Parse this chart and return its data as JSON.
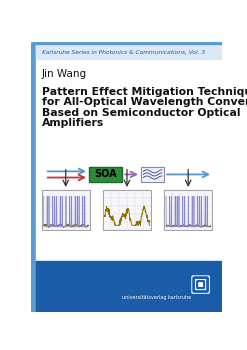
{
  "series_title": "Karlsruhe Series in Photonics & Communications, Vol. 3",
  "author": "Jin Wang",
  "title_line1": "Pattern Effect Mitigation Techniques",
  "title_line2": "for All-Optical Wavelength Converters",
  "title_line3": "Based on Semiconductor Optical",
  "title_line4": "Amplifiers",
  "publisher_text": "universitätsverlag karlsruhe",
  "white_bg": "#ffffff",
  "blue_banner": "#1a5ca8",
  "soa_green": "#2e8b3e",
  "series_color": "#1a5ca8",
  "title_color": "#111111",
  "author_color": "#111111",
  "left_bar_color": "#5b9bd5",
  "arrow_blue": "#5599cc",
  "arrow_red": "#cc3333",
  "arrow_purple": "#9966bb",
  "filter_box_bg": "#eef0ff",
  "signal_box_bg": "#f5f5fa",
  "grid_color": "#d0d0e0",
  "logo_color": "#1a5ca8"
}
